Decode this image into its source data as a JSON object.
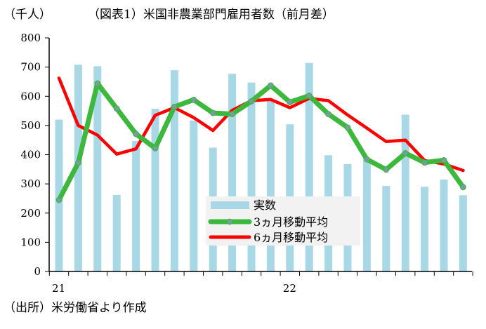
{
  "header": {
    "unit_label": "（千人）",
    "title": "（図表1）米国非農業部門雇用者数（前月差）"
  },
  "footer": {
    "source": "（出所）米労働省より作成"
  },
  "colors": {
    "bar": "#a8d8e5",
    "ma3_line": "#3cb83c",
    "ma3_marker": "#7a9aa6",
    "ma6_line": "#ff0000",
    "axis": "#000000",
    "legend_bg": "#f2f2f2"
  },
  "chart_data": {
    "type": "bar",
    "title": "（図表1）米国非農業部門雇用者数（前月差）",
    "ylabel": "（千人）",
    "ylim": [
      0,
      800
    ],
    "yticks": [
      0,
      100,
      200,
      300,
      400,
      500,
      600,
      700,
      800
    ],
    "grid": false,
    "legend_position": "center-bottom",
    "x_tick_labels": [
      {
        "index": 0,
        "label": "21"
      },
      {
        "index": 12,
        "label": "22"
      }
    ],
    "series": [
      {
        "name": "実数",
        "kind": "bar",
        "values": [
          520,
          708,
          703,
          262,
          447,
          557,
          689,
          517,
          424,
          677,
          647,
          588,
          504,
          714,
          398,
          368,
          386,
          293,
          537,
          290,
          315,
          261
        ]
      },
      {
        "name": "3ヵ月移動平均",
        "kind": "line",
        "values": [
          245,
          372,
          644,
          558,
          471,
          422,
          564,
          588,
          543,
          539,
          583,
          637,
          580,
          602,
          539,
          493,
          384,
          349,
          405,
          373,
          381,
          289
        ]
      },
      {
        "name": "6ヵ月移動平均",
        "kind": "line",
        "values": [
          662,
          500,
          467,
          402,
          420,
          535,
          561,
          527,
          483,
          552,
          585,
          589,
          561,
          593,
          585,
          536,
          491,
          445,
          450,
          380,
          368,
          346
        ]
      }
    ]
  }
}
